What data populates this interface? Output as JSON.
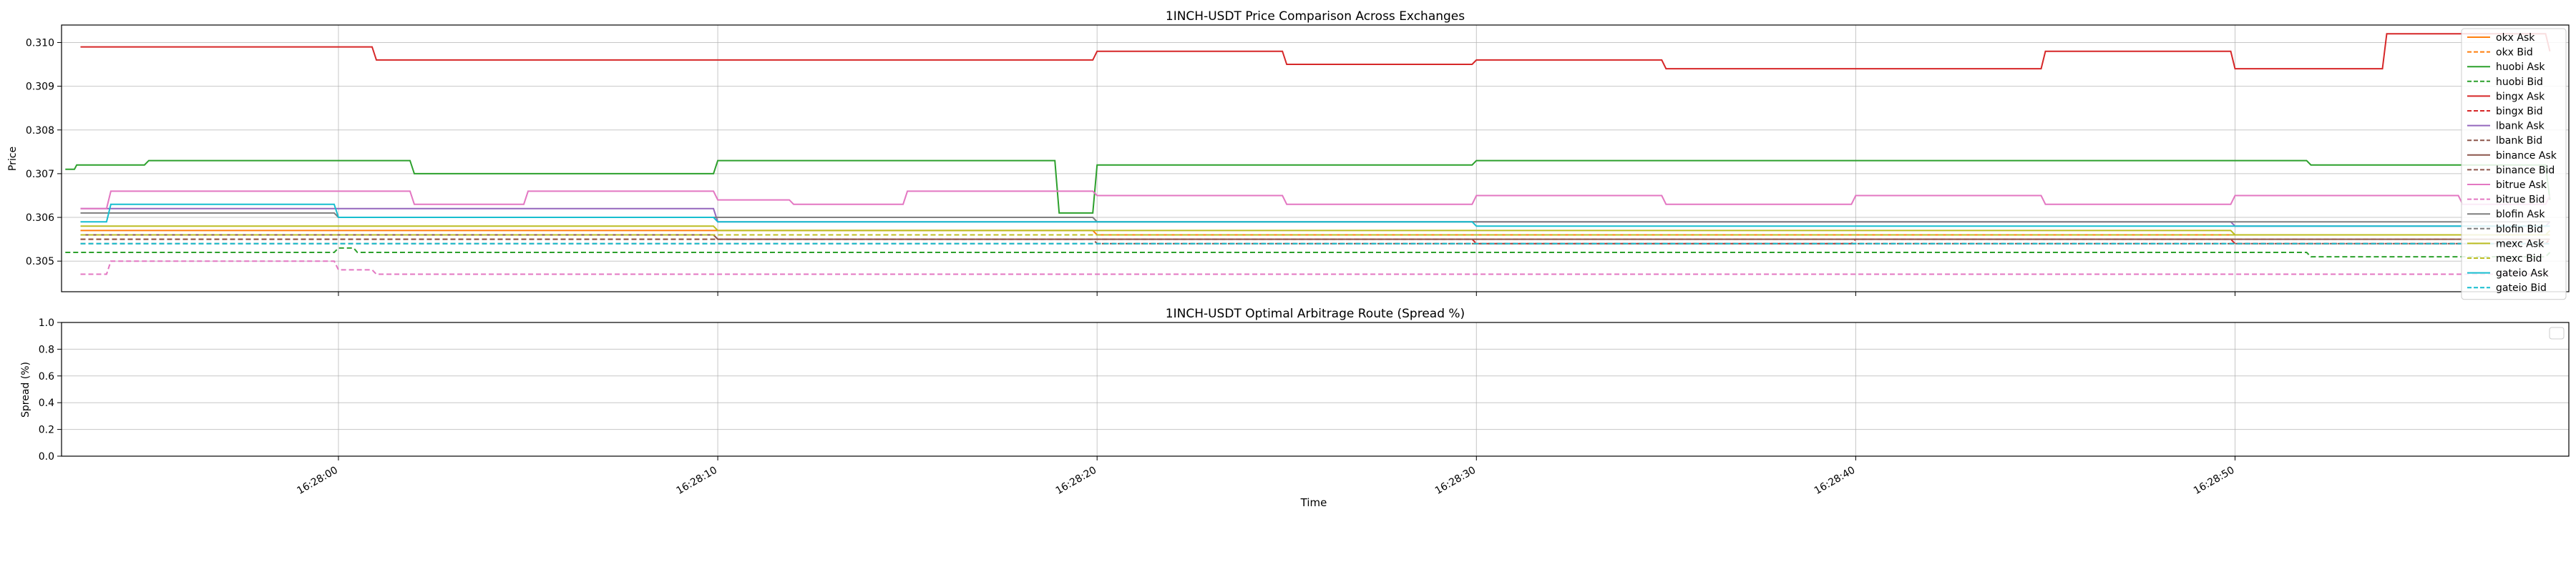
{
  "chart_data": [
    {
      "type": "line",
      "title": "1INCH-USDT Price Comparison Across Exchanges",
      "xlabel": "",
      "ylabel": "Price",
      "ylim": [
        0.3043,
        0.3104
      ],
      "yticks": [
        "0.305",
        "0.306",
        "0.307",
        "0.308",
        "0.309",
        "0.310"
      ],
      "ytick_values": [
        0.305,
        0.306,
        0.307,
        0.308,
        0.309,
        0.31
      ],
      "grid": true,
      "legend_position": "right",
      "x_time_range": [
        "16:27:52.7",
        "16:28:58.8"
      ],
      "series": [
        {
          "name": "okx Ask",
          "color": "#ff7f0e",
          "style": "solid",
          "x": [
            "16:27:53.2",
            "16:28:00",
            "16:28:10",
            "16:28:20",
            "16:28:30",
            "16:28:40",
            "16:28:50",
            "16:28:58.3"
          ],
          "values": [
            0.3057,
            0.3057,
            0.3057,
            0.3056,
            0.3056,
            0.3056,
            0.3056,
            0.3056
          ]
        },
        {
          "name": "okx Bid",
          "color": "#ff7f0e",
          "style": "dashed",
          "x": [
            "16:27:53.2",
            "16:28:00",
            "16:28:10",
            "16:28:20",
            "16:28:30",
            "16:28:40",
            "16:28:50",
            "16:28:58.3"
          ],
          "values": [
            0.3055,
            0.3055,
            0.3055,
            0.3055,
            0.3055,
            0.3055,
            0.3055,
            0.3055
          ]
        },
        {
          "name": "huobi Ask",
          "color": "#2ca02c",
          "style": "solid",
          "x": [
            "16:27:52.8",
            "16:27:53.1",
            "16:27:55",
            "16:28:00",
            "16:28:01",
            "16:28:02",
            "16:28:10",
            "16:28:18",
            "16:28:19",
            "16:28:20",
            "16:28:30",
            "16:28:40",
            "16:28:50",
            "16:28:52",
            "16:28:58.3"
          ],
          "values": [
            0.3071,
            0.3072,
            0.3073,
            0.3073,
            0.3073,
            0.307,
            0.3073,
            0.3073,
            0.3061,
            0.3072,
            0.3073,
            0.3073,
            0.3073,
            0.3072,
            0.3064
          ]
        },
        {
          "name": "huobi Bid",
          "color": "#2ca02c",
          "style": "dashed",
          "x": [
            "16:27:52.8",
            "16:28:00",
            "16:28:00.5",
            "16:28:10",
            "16:28:20",
            "16:28:30",
            "16:28:40",
            "16:28:50",
            "16:28:52",
            "16:28:58.3"
          ],
          "values": [
            0.3052,
            0.3053,
            0.3052,
            0.3052,
            0.3052,
            0.3052,
            0.3052,
            0.3052,
            0.3051,
            0.3052
          ]
        },
        {
          "name": "bingx Ask",
          "color": "#d62728",
          "style": "solid",
          "x": [
            "16:27:53.2",
            "16:28:00",
            "16:28:01",
            "16:28:05",
            "16:28:10",
            "16:28:20",
            "16:28:25",
            "16:28:30",
            "16:28:35",
            "16:28:40",
            "16:28:45",
            "16:28:50",
            "16:28:54",
            "16:28:58.3"
          ],
          "values": [
            0.3099,
            0.3099,
            0.3096,
            0.3096,
            0.3096,
            0.3098,
            0.3095,
            0.3096,
            0.3094,
            0.3094,
            0.3098,
            0.3094,
            0.3102,
            0.3098
          ]
        },
        {
          "name": "bingx Bid",
          "color": "#d62728",
          "style": "dashed",
          "x": [
            "16:27:53.2",
            "16:28:00",
            "16:28:10",
            "16:28:20",
            "16:28:30",
            "16:28:40",
            "16:28:50",
            "16:28:58.3"
          ],
          "values": [
            0.3056,
            0.3056,
            0.3055,
            0.3055,
            0.3054,
            0.3055,
            0.3054,
            0.3055
          ]
        },
        {
          "name": "lbank Ask",
          "color": "#9467bd",
          "style": "solid",
          "x": [
            "16:27:53.2",
            "16:28:00",
            "16:28:10",
            "16:28:20",
            "16:28:30",
            "16:28:40",
            "16:28:50",
            "16:28:58.3"
          ],
          "values": [
            0.3062,
            0.3062,
            0.3059,
            0.3059,
            0.3059,
            0.3059,
            0.3058,
            0.3059
          ]
        },
        {
          "name": "lbank Bid",
          "color": "#8c564b",
          "style": "dashed",
          "x": [
            "16:27:53.2",
            "16:28:00",
            "16:28:10",
            "16:28:20",
            "16:28:30",
            "16:28:40",
            "16:28:50",
            "16:28:58.3"
          ],
          "values": [
            0.3054,
            0.3054,
            0.3054,
            0.3054,
            0.3054,
            0.3054,
            0.3054,
            0.3054
          ]
        },
        {
          "name": "binance Ask",
          "color": "#8c564b",
          "style": "solid",
          "x": [
            "16:27:53.2",
            "16:28:00",
            "16:28:10",
            "16:28:20",
            "16:28:30",
            "16:28:40",
            "16:28:50",
            "16:28:58.3"
          ],
          "values": [
            0.3056,
            0.3056,
            0.3055,
            0.3055,
            0.3055,
            0.3055,
            0.3055,
            0.3055
          ]
        },
        {
          "name": "binance Bid",
          "color": "#8c564b",
          "style": "dashed",
          "x": [
            "16:27:53.2",
            "16:28:00",
            "16:28:10",
            "16:28:20",
            "16:28:30",
            "16:28:40",
            "16:28:50",
            "16:28:58.3"
          ],
          "values": [
            0.3055,
            0.3055,
            0.3055,
            0.3054,
            0.3054,
            0.3054,
            0.3054,
            0.3054
          ]
        },
        {
          "name": "bitrue Ask",
          "color": "#e377c2",
          "style": "solid",
          "x": [
            "16:27:53.2",
            "16:27:54",
            "16:28:00",
            "16:28:02",
            "16:28:05",
            "16:28:10",
            "16:28:12",
            "16:28:15",
            "16:28:20",
            "16:28:25",
            "16:28:30",
            "16:28:35",
            "16:28:40",
            "16:28:45",
            "16:28:50",
            "16:28:56",
            "16:28:58.3"
          ],
          "values": [
            0.3062,
            0.3066,
            0.3066,
            0.3063,
            0.3066,
            0.3064,
            0.3063,
            0.3066,
            0.3065,
            0.3063,
            0.3065,
            0.3063,
            0.3065,
            0.3063,
            0.3065,
            0.3063,
            0.3065
          ]
        },
        {
          "name": "bitrue Bid",
          "color": "#e377c2",
          "style": "dashed",
          "x": [
            "16:27:53.2",
            "16:27:54",
            "16:28:00",
            "16:28:01",
            "16:28:02",
            "16:28:03",
            "16:28:10",
            "16:28:15",
            "16:28:20",
            "16:28:24",
            "16:28:30",
            "16:28:40",
            "16:28:50",
            "16:28:58.3"
          ],
          "values": [
            0.3047,
            0.305,
            0.3048,
            0.3047,
            0.3047,
            0.3047,
            0.3047,
            0.3047,
            0.3047,
            0.3047,
            0.3047,
            0.3047,
            0.3047,
            0.3047
          ]
        },
        {
          "name": "blofin Ask",
          "color": "#7f7f7f",
          "style": "solid",
          "x": [
            "16:27:53.2",
            "16:28:00",
            "16:28:10",
            "16:28:20",
            "16:28:30",
            "16:28:40",
            "16:28:50",
            "16:28:58.3"
          ],
          "values": [
            0.3061,
            0.306,
            0.306,
            0.3059,
            0.3059,
            0.3059,
            0.3059,
            0.3059
          ]
        },
        {
          "name": "blofin Bid",
          "color": "#7f7f7f",
          "style": "dashed",
          "x": [
            "16:27:53.2",
            "16:28:00",
            "16:28:10",
            "16:28:20",
            "16:28:30",
            "16:28:40",
            "16:28:50",
            "16:28:58.3"
          ],
          "values": [
            0.3056,
            0.3056,
            0.3056,
            0.3056,
            0.3056,
            0.3056,
            0.3056,
            0.3056
          ]
        },
        {
          "name": "mexc Ask",
          "color": "#bcbd22",
          "style": "solid",
          "x": [
            "16:27:53.2",
            "16:28:00",
            "16:28:10",
            "16:28:20",
            "16:28:30",
            "16:28:40",
            "16:28:50",
            "16:28:58.3"
          ],
          "values": [
            0.3058,
            0.3058,
            0.3057,
            0.3057,
            0.3057,
            0.3057,
            0.3056,
            0.3057
          ]
        },
        {
          "name": "mexc Bid",
          "color": "#bcbd22",
          "style": "dashed",
          "x": [
            "16:27:53.2",
            "16:28:00",
            "16:28:10",
            "16:28:20",
            "16:28:30",
            "16:28:40",
            "16:28:50",
            "16:28:58.3"
          ],
          "values": [
            0.3056,
            0.3056,
            0.3056,
            0.3056,
            0.3056,
            0.3056,
            0.3056,
            0.3056
          ]
        },
        {
          "name": "gateio Ask",
          "color": "#17becf",
          "style": "solid",
          "x": [
            "16:27:53.2",
            "16:27:54",
            "16:28:00",
            "16:28:10",
            "16:28:20",
            "16:28:30",
            "16:28:40",
            "16:28:50",
            "16:28:58.3"
          ],
          "values": [
            0.3059,
            0.3063,
            0.306,
            0.3059,
            0.3059,
            0.3058,
            0.3058,
            0.3058,
            0.3058
          ]
        },
        {
          "name": "gateio Bid",
          "color": "#17becf",
          "style": "dashed",
          "x": [
            "16:27:53.2",
            "16:28:00",
            "16:28:10",
            "16:28:20",
            "16:28:30",
            "16:28:40",
            "16:28:50",
            "16:28:58.3"
          ],
          "values": [
            0.3054,
            0.3054,
            0.3054,
            0.3054,
            0.3054,
            0.3054,
            0.3054,
            0.3054
          ]
        }
      ]
    },
    {
      "type": "line",
      "title": "1INCH-USDT Optimal Arbitrage Route (Spread %)",
      "xlabel": "Time",
      "ylabel": "Spread (%)",
      "ylim": [
        0.0,
        1.0
      ],
      "yticks": [
        "0.0",
        "0.2",
        "0.4",
        "0.6",
        "0.8",
        "1.0"
      ],
      "ytick_values": [
        0.0,
        0.2,
        0.4,
        0.6,
        0.8,
        1.0
      ],
      "xticks": [
        "16:28:00",
        "16:28:10",
        "16:28:20",
        "16:28:30",
        "16:28:40",
        "16:28:50"
      ],
      "grid": true,
      "legend_position": "upper right",
      "series": []
    }
  ]
}
